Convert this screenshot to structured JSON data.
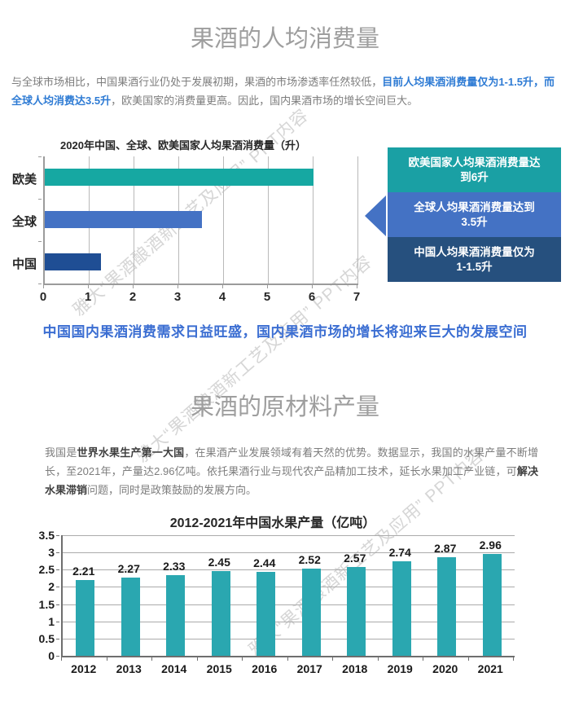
{
  "watermark": {
    "text": "雅大“果酒酿酒新工艺及应用” PPT内容",
    "color": "#d6d6d6"
  },
  "section1": {
    "title": "果酒的人均消费量",
    "paragraph": [
      {
        "text": "与全球市场相比，中国果酒行业仍处于发展初期，果酒的市场渗透率任然较低，",
        "style": "normal"
      },
      {
        "text": "目前人均果酒消费量仅为1-1.5升，而全球人均消费达3.5升",
        "style": "hl"
      },
      {
        "text": "，欧美国家的消费量更高。因此，国内果酒市场的增长空间巨大。",
        "style": "normal"
      }
    ],
    "headline": "中国国内果酒消费需求日益旺盛，国内果酒市场的增长将迎来巨大的发展空间",
    "callout": {
      "boxes": [
        {
          "text": "欧美国家人均果酒消费量达\n到6升",
          "color": "#1aa0a4"
        },
        {
          "text": "全球人均果酒消费量达到\n3.5升",
          "color": "#4472c4"
        },
        {
          "text": "中国人均果酒消费量仅为\n1-1.5升",
          "color": "#26507e"
        }
      ],
      "arrow_color": "#4472c4"
    }
  },
  "section2": {
    "title": "果酒的原材料产量",
    "paragraph": [
      {
        "text": "我国是",
        "style": "normal"
      },
      {
        "text": "世界水果生产第一大国",
        "style": "b"
      },
      {
        "text": "，在果酒产业发展领域有着天然的优势。数据显示，我国的水果产量不断增长，至2021年，产量达2.96亿吨。依托果酒行业与现代农产品精加工技术，延长水果加工产业链，可",
        "style": "normal"
      },
      {
        "text": "解决水果滞销",
        "style": "b"
      },
      {
        "text": "问题，同时是政策鼓励的发展方向。",
        "style": "normal"
      }
    ]
  },
  "chart_data": [
    {
      "type": "bar-horizontal",
      "title": "2020年中国、全球、欧美国家人均果酒消费量（升）",
      "categories": [
        "欧美",
        "全球",
        "中国"
      ],
      "values": [
        6,
        3.5,
        1.25
      ],
      "colors": [
        "#16a8a2",
        "#4472c4",
        "#1f4e94"
      ],
      "xlim": [
        0,
        7
      ],
      "xticks": [
        0,
        1,
        2,
        3,
        4,
        5,
        6,
        7
      ],
      "grid": true,
      "legend": false
    },
    {
      "type": "bar",
      "title": "2012-2021年中国水果产量（亿吨）",
      "categories": [
        "2012",
        "2013",
        "2014",
        "2015",
        "2016",
        "2017",
        "2018",
        "2019",
        "2020",
        "2021"
      ],
      "values": [
        2.21,
        2.27,
        2.33,
        2.45,
        2.44,
        2.52,
        2.57,
        2.74,
        2.87,
        2.96
      ],
      "bar_color": "#2aa7b0",
      "ylim": [
        0,
        3.5
      ],
      "yticks": [
        0,
        0.5,
        1,
        1.5,
        2,
        2.5,
        3,
        3.5
      ],
      "grid": true,
      "data_labels": true,
      "legend": false
    }
  ]
}
